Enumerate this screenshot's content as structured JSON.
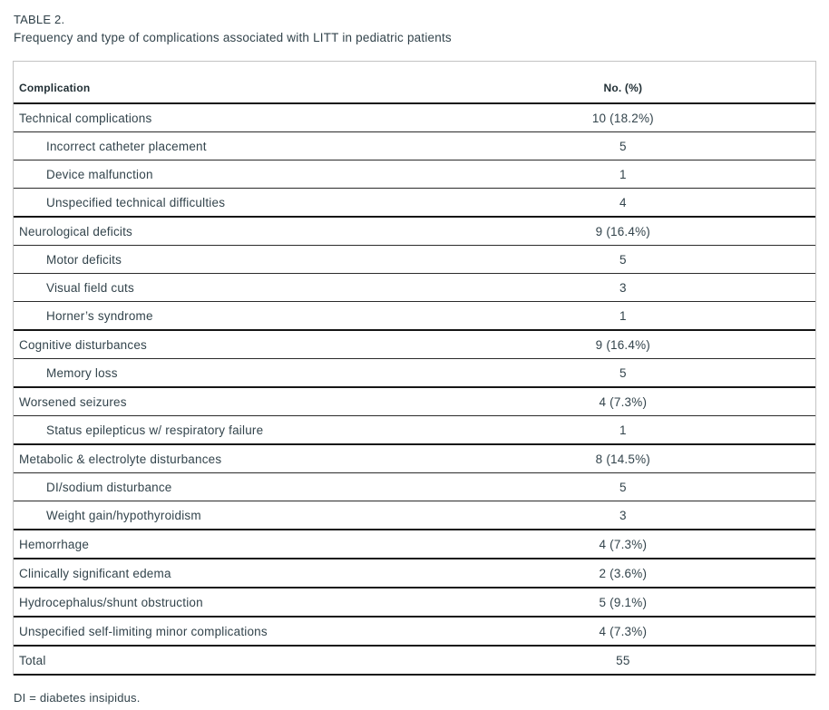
{
  "page": {
    "label": "TABLE 2.",
    "title": "Frequency and type of complications associated with LITT in pediatric patients",
    "footnote": "DI = diabetes insipidus."
  },
  "table": {
    "columns": {
      "complication": "Complication",
      "number_percent": "No. (%)"
    },
    "rows": [
      {
        "label": "Technical complications",
        "value": "10 (18.2%)",
        "level": 0
      },
      {
        "label": "Incorrect catheter placement",
        "value": "5",
        "level": 1
      },
      {
        "label": "Device malfunction",
        "value": "1",
        "level": 1
      },
      {
        "label": "Unspecified technical difficulties",
        "value": "4",
        "level": 1
      },
      {
        "label": "Neurological deficits",
        "value": "9 (16.4%)",
        "level": 0
      },
      {
        "label": "Motor deficits",
        "value": "5",
        "level": 1
      },
      {
        "label": "Visual field cuts",
        "value": "3",
        "level": 1
      },
      {
        "label": "Horner’s syndrome",
        "value": "1",
        "level": 1
      },
      {
        "label": "Cognitive disturbances",
        "value": "9 (16.4%)",
        "level": 0
      },
      {
        "label": "Memory loss",
        "value": "5",
        "level": 1
      },
      {
        "label": "Worsened seizures",
        "value": "4 (7.3%)",
        "level": 0
      },
      {
        "label": "Status epilepticus w/ respiratory failure",
        "value": "1",
        "level": 1
      },
      {
        "label": "Metabolic & electrolyte disturbances",
        "value": "8 (14.5%)",
        "level": 0
      },
      {
        "label": "DI/sodium disturbance",
        "value": "5",
        "level": 1
      },
      {
        "label": "Weight gain/hypothyroidism",
        "value": "3",
        "level": 1
      },
      {
        "label": "Hemorrhage",
        "value": "4 (7.3%)",
        "level": 0
      },
      {
        "label": "Clinically significant edema",
        "value": "2 (3.6%)",
        "level": 0
      },
      {
        "label": "Hydrocephalus/shunt obstruction",
        "value": "5 (9.1%)",
        "level": 0
      },
      {
        "label": "Unspecified self-limiting minor complications",
        "value": "4 (7.3%)",
        "level": 0
      },
      {
        "label": "Total",
        "value": "55",
        "level": 0
      }
    ]
  },
  "colors": {
    "text": "#33444c",
    "heavy_rule": "#161616",
    "light_rule": "#2b2b2b",
    "frame": "#c3c3c3"
  }
}
